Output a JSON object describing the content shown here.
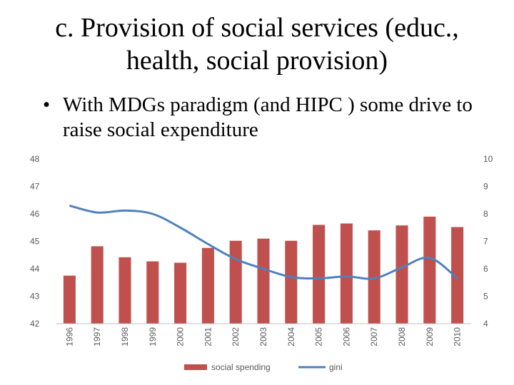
{
  "slide": {
    "title": "c. Provision of social services (educ., health, social provision)",
    "bullet_char": "•",
    "bullet_text": "With MDGs paradigm (and HIPC ) some drive to raise social expenditure"
  },
  "chart_data": {
    "type": "bar",
    "categories": [
      "1996",
      "1997",
      "1998",
      "1999",
      "2000",
      "2001",
      "2002",
      "2003",
      "2004",
      "2005",
      "2006",
      "2007",
      "2008",
      "2009",
      "2010"
    ],
    "series": [
      {
        "name": "social spending",
        "kind": "bar",
        "axis": "left",
        "color": "#c0504d",
        "values": [
          43.75,
          44.82,
          44.42,
          44.27,
          44.22,
          44.76,
          45.02,
          45.1,
          45.02,
          45.6,
          45.65,
          45.4,
          45.58,
          45.9,
          45.52
        ]
      },
      {
        "name": "gini",
        "kind": "line",
        "axis": "right",
        "color": "#4f81bd",
        "values": [
          8.3,
          8.05,
          8.12,
          8.0,
          7.5,
          6.9,
          6.35,
          6.0,
          5.7,
          5.65,
          5.72,
          5.65,
          6.05,
          6.4,
          5.65
        ]
      }
    ],
    "y_left": {
      "min": 42,
      "max": 48,
      "ticks": [
        "42",
        "43",
        "44",
        "45",
        "46",
        "47",
        "48"
      ]
    },
    "y_right": {
      "min": 4,
      "max": 10,
      "ticks": [
        "4",
        "5",
        "6",
        "7",
        "8",
        "9",
        "10"
      ]
    },
    "grid": false,
    "legend_position": "bottom"
  }
}
